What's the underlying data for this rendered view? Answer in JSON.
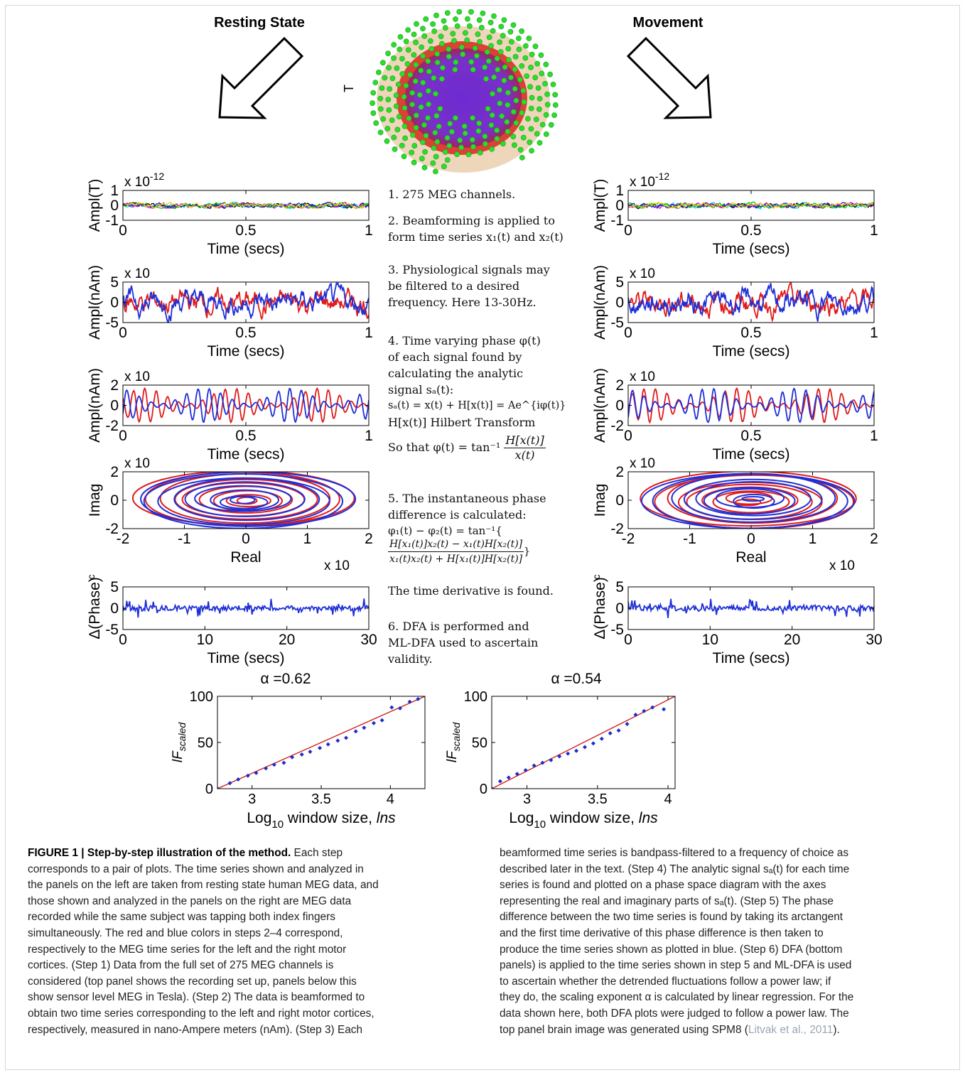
{
  "headings": {
    "left": "Resting State",
    "right": "Movement"
  },
  "brain": {
    "sensor_label": "T",
    "colors": {
      "sensors": "#2ddc2d",
      "cortex": "#7b2fc9",
      "mesh": "#d9261c",
      "scalp": "#e9c9a8"
    }
  },
  "series_colors": {
    "red": "#e01b1b",
    "blue": "#1f2fd6"
  },
  "steps": {
    "s1": "1. 275 MEG channels.",
    "s2a": "2. Beamforming is applied to",
    "s2b": "form time series x₁(t) and x₂(t)",
    "s3a": "3. Physiological signals may",
    "s3b": "be filtered to a desired",
    "s3c": "frequency. Here 13-30Hz.",
    "s4a": "4. Time varying phase φ(t)",
    "s4b": "of each signal found by",
    "s4c": "calculating the analytic",
    "s4d": "signal sₐ(t):",
    "s4e": "sₐ(t) = x(t) + H[x(t)] = Ae^{iφ(t)}",
    "s4f": "H[x(t)] Hilbert Transform",
    "s4g_pre": "So that φ(t) = tan⁻¹",
    "s4g_num": "H[x(t)]",
    "s4g_den": "x(t)",
    "s5a": "5. The instantaneous phase",
    "s5b": "difference is calculated:",
    "s5c": "φ₁(t) − φ₂(t) = tan⁻¹{",
    "s5_num": "H[x₁(t)]x₂(t) − x₁(t)H[x₂(t)]",
    "s5_den": "x₁(t)x₂(t) + H[x₁(t)]H[x₂(t)]",
    "s5_close": "}",
    "s5d": "The time derivative is found.",
    "s6a": "6. DFA is performed and",
    "s6b": "ML-DFA used to ascertain",
    "s6c": "validity."
  },
  "chart_data": [
    {
      "id": "left-meg",
      "type": "line",
      "ylabel": "Ampl(T)",
      "xlabel": "Time (secs)",
      "exponent_label": "x 10",
      "exponent": "-12",
      "xlim": [
        0,
        1
      ],
      "ylim": [
        -1,
        1
      ],
      "xticks": [
        "0",
        "0.5",
        "1"
      ],
      "yticks": [
        "1",
        "0",
        "-1"
      ],
      "series_colors": [
        "#00e5e5",
        "#000000",
        "#e600e6",
        "#00c800",
        "#2030d0",
        "#ffcc00"
      ]
    },
    {
      "id": "right-meg",
      "type": "line",
      "ylabel": "Ampl(T)",
      "xlabel": "Time (secs)",
      "exponent_label": "x 10",
      "exponent": "-12",
      "xlim": [
        0,
        1
      ],
      "ylim": [
        -1,
        1
      ],
      "xticks": [
        "0",
        "0.5",
        "1"
      ],
      "yticks": [
        "1",
        "0",
        "-1"
      ],
      "series_colors": [
        "#00e5e5",
        "#000000",
        "#e600e6",
        "#00c800",
        "#2030d0",
        "#ffcc00"
      ]
    },
    {
      "id": "left-beam",
      "type": "line",
      "ylabel": "Ampl(nAm)",
      "xlabel": "Time (secs)",
      "exponent_label": "x 10",
      "xlim": [
        0,
        1
      ],
      "ylim": [
        -5,
        5
      ],
      "xticks": [
        "0",
        "0.5",
        "1"
      ],
      "yticks": [
        "5",
        "0",
        "-5"
      ]
    },
    {
      "id": "right-beam",
      "type": "line",
      "ylabel": "Ampl(nAm)",
      "xlabel": "Time (secs)",
      "exponent_label": "x 10",
      "xlim": [
        0,
        1
      ],
      "ylim": [
        -5,
        5
      ],
      "xticks": [
        "0",
        "0.5",
        "1"
      ],
      "yticks": [
        "5",
        "0",
        "-5"
      ]
    },
    {
      "id": "left-filt",
      "type": "line",
      "ylabel": "Ampl(nAm)",
      "xlabel": "Time (secs)",
      "exponent_label": "x 10",
      "xlim": [
        0,
        1
      ],
      "ylim": [
        -2,
        2
      ],
      "xticks": [
        "0",
        "0.5",
        "1"
      ],
      "yticks": [
        "2",
        "0",
        "-2"
      ]
    },
    {
      "id": "right-filt",
      "type": "line",
      "ylabel": "Ampl(nAm)",
      "xlabel": "Time (secs)",
      "exponent_label": "x 10",
      "xlim": [
        0,
        1
      ],
      "ylim": [
        -2,
        2
      ],
      "xticks": [
        "0",
        "0.5",
        "1"
      ],
      "yticks": [
        "2",
        "0",
        "-2"
      ]
    },
    {
      "id": "left-phase",
      "type": "line",
      "ylabel": "Imag",
      "xlabel": "Real",
      "exponent_label": "x 10",
      "xexponent_label": "x 10",
      "xlim": [
        -2,
        2
      ],
      "ylim": [
        -2,
        2
      ],
      "xticks": [
        "-2",
        "-1",
        "0",
        "1",
        "2"
      ],
      "yticks": [
        "2",
        "0",
        "-2"
      ]
    },
    {
      "id": "right-phase",
      "type": "line",
      "ylabel": "Imag",
      "xlabel": "Real",
      "exponent_label": "x 10",
      "xexponent_label": "x 10",
      "xlim": [
        -2,
        2
      ],
      "ylim": [
        -2,
        2
      ],
      "xticks": [
        "-2",
        "-1",
        "0",
        "1",
        "2"
      ],
      "yticks": [
        "2",
        "0",
        "-2"
      ]
    },
    {
      "id": "left-dphase",
      "type": "line",
      "ylabel": "Δ(Phase)",
      "ylabel_sup": "c",
      "xlabel": "Time (secs)",
      "xlim": [
        0,
        30
      ],
      "ylim": [
        -5,
        5
      ],
      "xticks": [
        "0",
        "10",
        "20",
        "30"
      ],
      "yticks": [
        "5",
        "0",
        "-5"
      ]
    },
    {
      "id": "right-dphase",
      "type": "line",
      "ylabel": "Δ(Phase)",
      "ylabel_sup": "c",
      "xlabel": "Time (secs)",
      "xlim": [
        0,
        30
      ],
      "ylim": [
        -5,
        5
      ],
      "xticks": [
        "0",
        "10",
        "20",
        "30"
      ],
      "yticks": [
        "5",
        "0",
        "-5"
      ]
    },
    {
      "id": "left-dfa",
      "type": "scatter",
      "title": "α =0.62",
      "xlabel_pre": "Log",
      "xlabel_sub": "10",
      "xlabel_post": " window size, ",
      "xlabel_it": "lns",
      "ylabel_pre": "lF",
      "ylabel_sub": "scaled",
      "xlim": [
        2.75,
        4.25
      ],
      "ylim": [
        0,
        100
      ],
      "xticks": [
        "3",
        "3.5",
        "4"
      ],
      "yticks": [
        "100",
        "50",
        "0"
      ],
      "x": [
        2.75,
        2.84,
        2.9,
        2.97,
        3.03,
        3.1,
        3.16,
        3.23,
        3.29,
        3.36,
        3.42,
        3.49,
        3.55,
        3.62,
        3.68,
        3.75,
        3.81,
        3.88,
        3.94,
        4.01,
        4.07,
        4.14,
        4.2
      ],
      "y": [
        0,
        6,
        10,
        14,
        17,
        22,
        26,
        28,
        34,
        37,
        40,
        44,
        48,
        52,
        55,
        62,
        66,
        71,
        74,
        88,
        87,
        94,
        97
      ],
      "fit": [
        [
          2.75,
          0
        ],
        [
          4.25,
          100
        ]
      ]
    },
    {
      "id": "right-dfa",
      "type": "scatter",
      "title": "α =0.54",
      "xlabel_pre": "Log",
      "xlabel_sub": "10",
      "xlabel_post": " window size, ",
      "xlabel_it": "lns",
      "ylabel_pre": "lF",
      "ylabel_sub": "scaled",
      "xlim": [
        2.75,
        4.05
      ],
      "ylim": [
        0,
        100
      ],
      "xticks": [
        "3",
        "3.5",
        "4"
      ],
      "yticks": [
        "100",
        "50",
        "0"
      ],
      "x": [
        2.75,
        2.81,
        2.87,
        2.93,
        2.99,
        3.05,
        3.11,
        3.17,
        3.23,
        3.29,
        3.35,
        3.41,
        3.47,
        3.53,
        3.59,
        3.65,
        3.71,
        3.77,
        3.83,
        3.89,
        3.97
      ],
      "y": [
        0,
        8,
        12,
        16,
        20,
        25,
        28,
        31,
        35,
        38,
        41,
        45,
        49,
        54,
        60,
        63,
        70,
        80,
        84,
        88,
        86
      ],
      "fit": [
        [
          2.75,
          0
        ],
        [
          4.05,
          100
        ]
      ]
    }
  ],
  "caption": {
    "label": "FIGURE 1 | Step-by-step illustration of the method.",
    "left_lines": [
      " Each step",
      "corresponds to a pair of plots. The time series shown and analyzed in",
      "the panels on the left are taken from resting state human MEG data, and",
      "those shown and analyzed in the panels on the right are MEG data",
      "recorded while the same subject was tapping both index fingers",
      "simultaneously. The red and blue colors in steps 2–4 correspond,",
      "respectively to the MEG time series for the left and the right motor",
      "cortices. (Step 1) Data from the full set of 275 MEG channels is",
      "considered (top panel shows the recording set up, panels below this",
      "show sensor level MEG in Tesla). (Step 2) The data is beamformed to",
      "obtain two time series corresponding to the left and right motor cortices,",
      "respectively, measured in nano-Ampere meters (nAm). (Step 3) Each"
    ],
    "right_lines": [
      "beamformed time series is bandpass-filtered to a frequency of choice as",
      "described later in the text. (Step 4) The analytic signal sₐ(t) for each time",
      "series is found and plotted on a phase space diagram with the axes",
      "representing the real and imaginary parts of sₐ(t). (Step 5) The phase",
      "difference between the two time series is found by taking its arctangent",
      "and the first time derivative of this phase difference is then taken to",
      "produce the time series shown as plotted in blue. (Step 6) DFA (bottom",
      "panels) is applied to the time series shown in step 5 and ML-DFA is used",
      "to ascertain whether the detrended fluctuations follow a power law; if",
      "they do, the scaling exponent α is calculated by linear regression. For the",
      "data shown here, both DFA plots were judged to follow a power law. The"
    ],
    "last_line_pre": "top panel brain image was generated using SPM8 (",
    "ref": "Litvak et al., 2011",
    "last_line_post": ")."
  }
}
